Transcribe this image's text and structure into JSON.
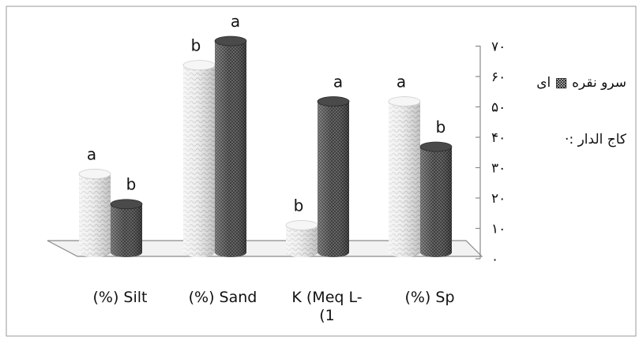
{
  "chart_data": {
    "type": "bar",
    "categories": [
      "(%) Silt",
      "(%) Sand",
      "K (Meq L-\n(1",
      "(%) Sp"
    ],
    "series": [
      {
        "name": "سرو نقره ای",
        "values": [
          26,
          62,
          9,
          50
        ],
        "letters": [
          "a",
          "b",
          "b",
          "a"
        ]
      },
      {
        "name": "کاج الدار",
        "values": [
          16,
          70,
          50,
          35
        ],
        "letters": [
          "b",
          "a",
          "a",
          "b"
        ]
      }
    ],
    "y_ticks": [
      "٠",
      "١٠",
      "٢٠",
      "٣٠",
      "۴٠",
      "۵٠",
      "۶٠",
      "٧٠"
    ],
    "ylim": [
      0,
      70
    ],
    "grid": false,
    "legend_position": "right"
  },
  "legend": {
    "series1": "سرو نقره ▩ ای",
    "series2": "کاج الدار :·"
  },
  "colors": {
    "series1": "#e4e4e4",
    "series2": "#5c5c5c",
    "axis": "#7a7a7a"
  }
}
